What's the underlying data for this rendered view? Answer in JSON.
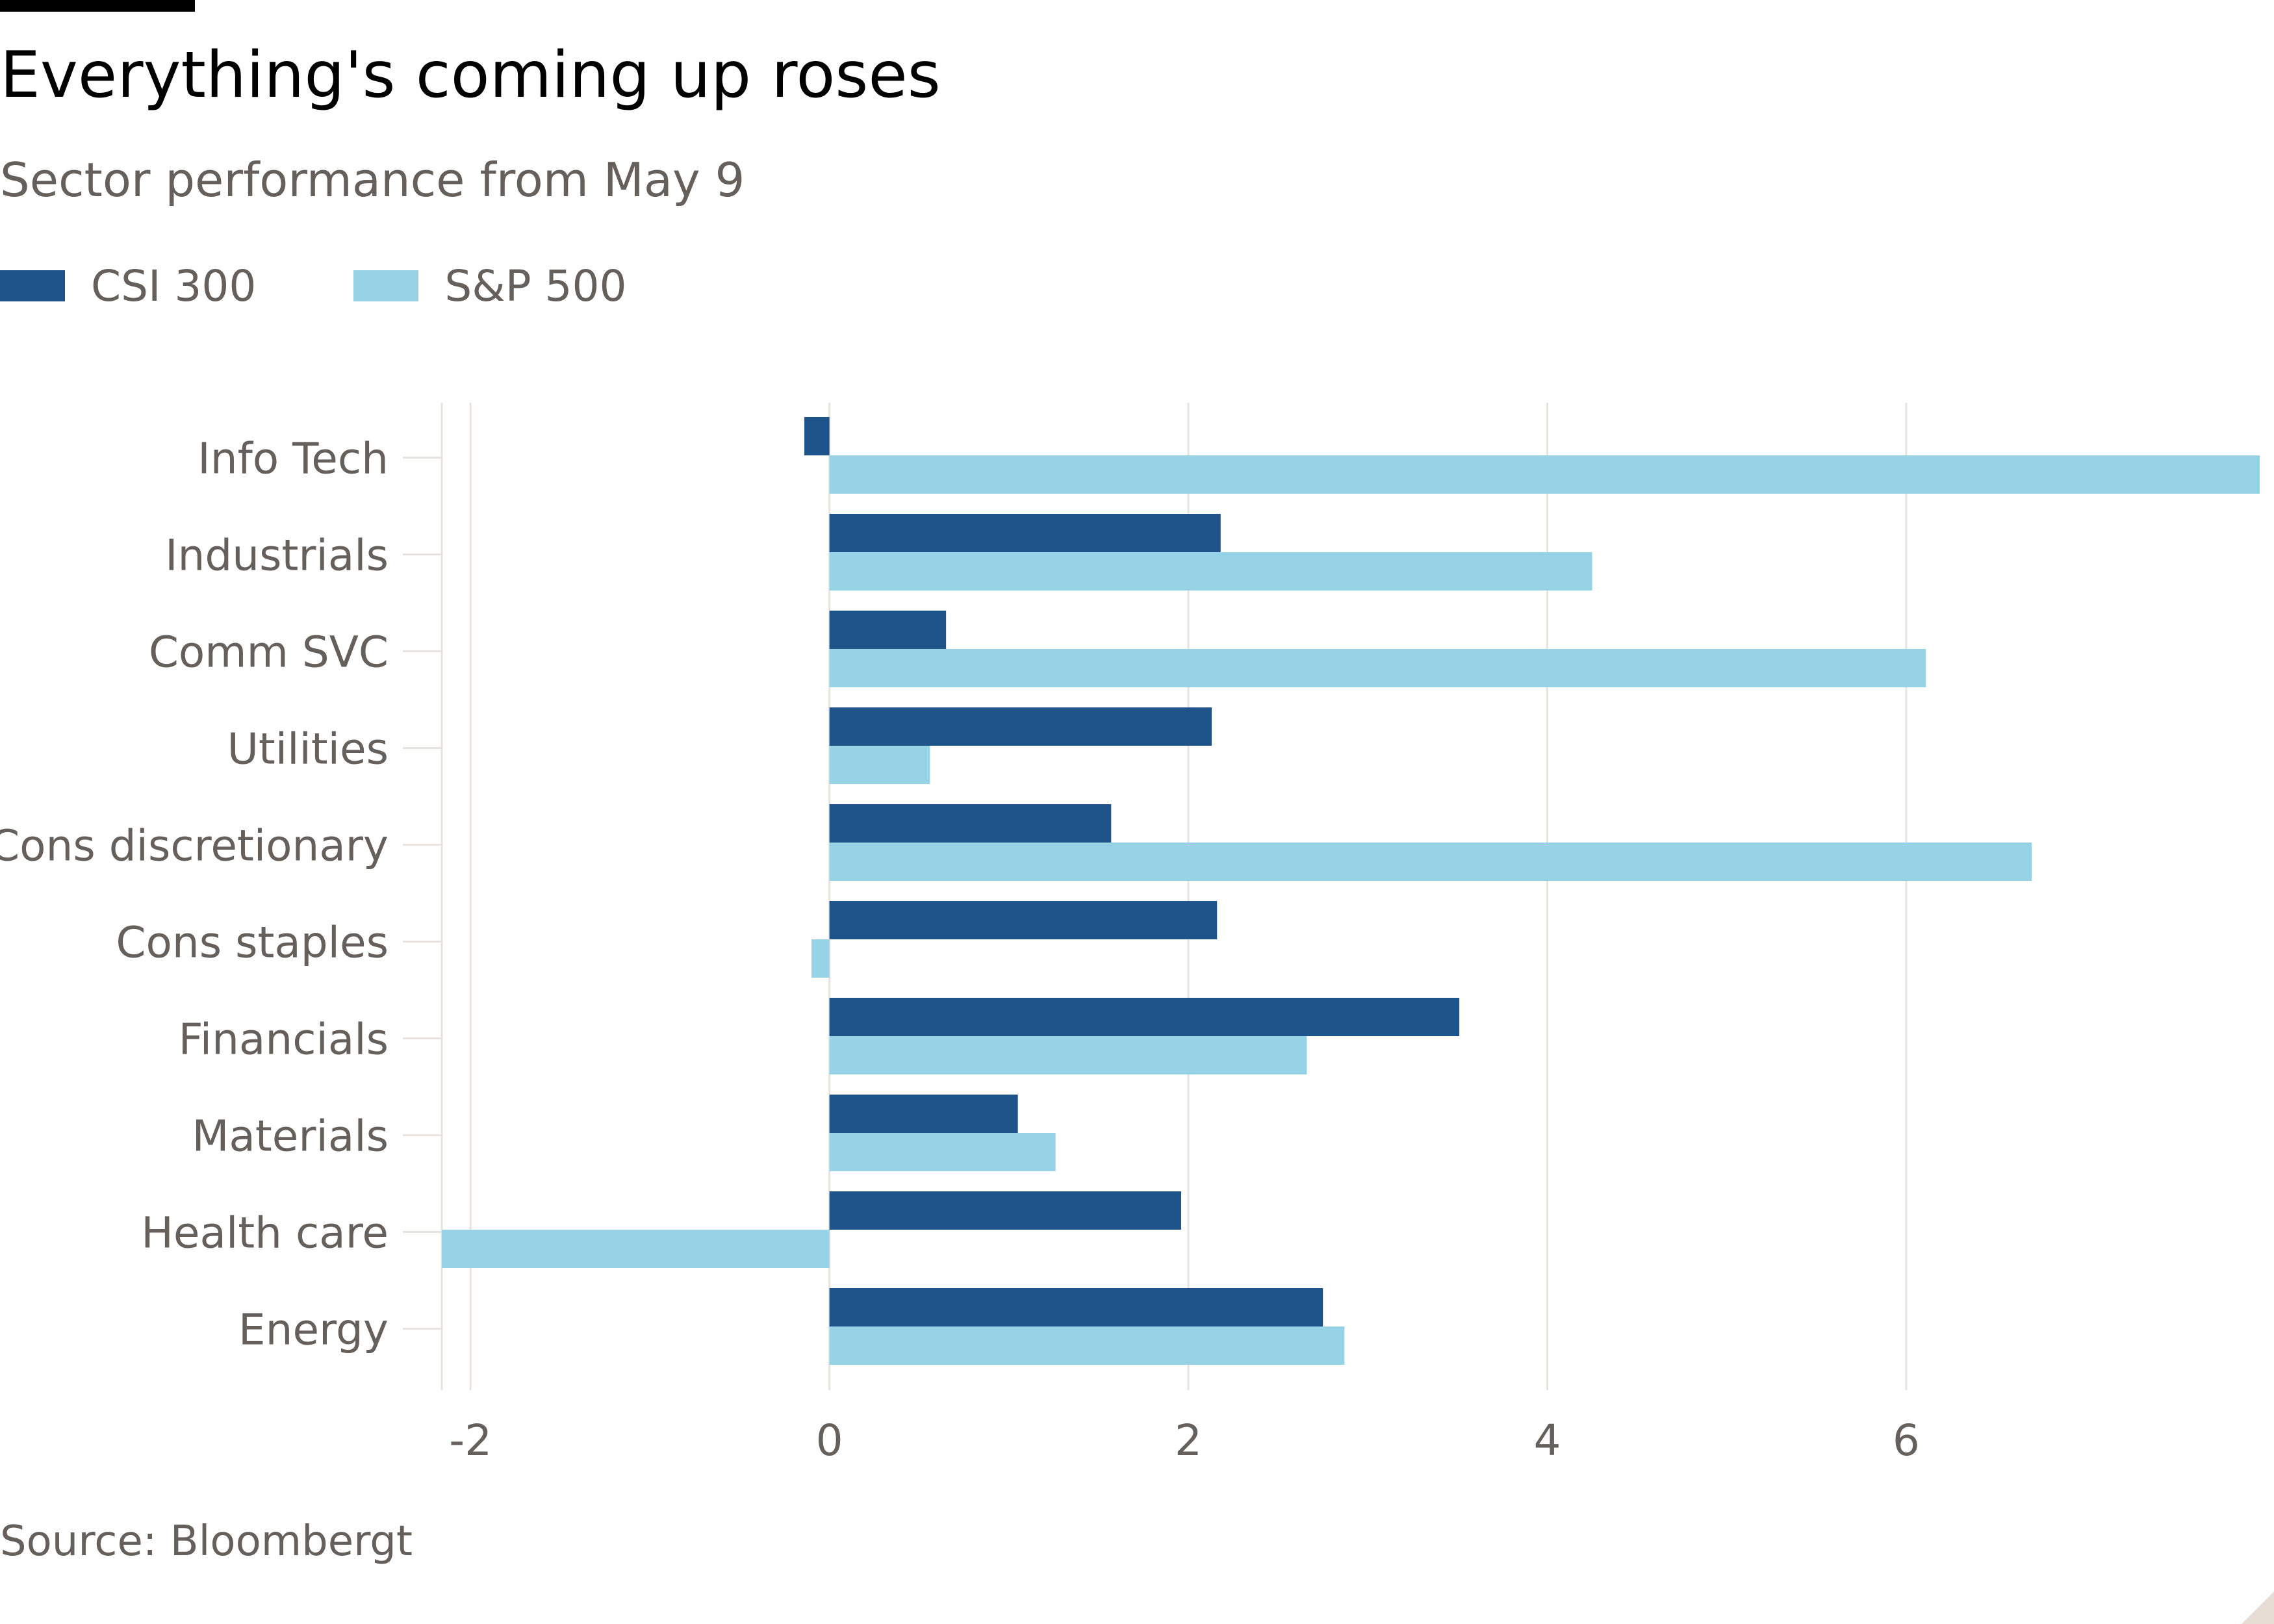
{
  "header": {
    "title": "Everything's coming up roses",
    "subtitle": "Sector performance from May 9"
  },
  "footer": {
    "source": "Source: Bloombergt"
  },
  "colors": {
    "csi300": "#1f548a",
    "sp500": "#96d3e6",
    "grid": "#e8e3df",
    "text": "#66605c"
  },
  "chart_data": {
    "type": "bar",
    "orientation": "horizontal",
    "title": "Everything's coming up roses",
    "subtitle": "Sector performance from May 9",
    "categories": [
      "Info Tech",
      "Industrials",
      "Comm SVC",
      "Utilities",
      "Cons discretionary",
      "Cons staples",
      "Financials",
      "Materials",
      "Health care",
      "Energy"
    ],
    "series": [
      {
        "name": "CSI 300",
        "color": "#1f548a",
        "values": [
          -0.14,
          2.18,
          0.65,
          2.13,
          1.57,
          2.16,
          3.51,
          1.05,
          1.96,
          2.75
        ]
      },
      {
        "name": "S&P 500",
        "color": "#96d3e6",
        "values": [
          7.97,
          4.25,
          6.11,
          0.56,
          6.7,
          -0.1,
          2.66,
          1.26,
          -2.16,
          2.87
        ]
      }
    ],
    "xlim": [
      -2.16,
      7.97
    ],
    "xticks": [
      -2,
      0,
      2,
      4,
      6
    ],
    "grid": true,
    "legend_position": "top-left"
  }
}
